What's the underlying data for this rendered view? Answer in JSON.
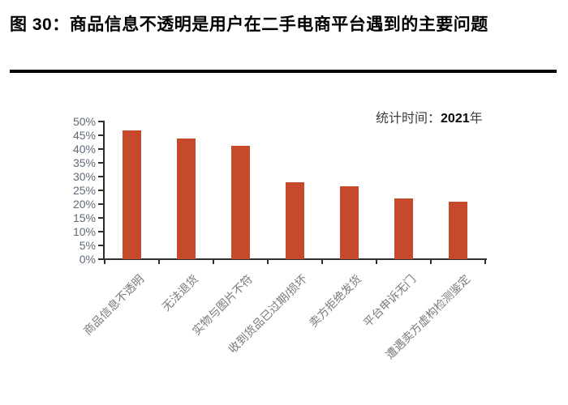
{
  "page": {
    "title": "图 30：商品信息不透明是用户在二手电商平台遇到的主要问题",
    "stat_time": {
      "label": "统计时间：",
      "year": "2021",
      "year_suffix": "年"
    }
  },
  "colors": {
    "bar": "#C5492A",
    "axis": "#2f2f2f",
    "y_tick_label": "#5f6b7a",
    "category_label": "#7a7a7a",
    "title": "#000000"
  },
  "chart_data": {
    "type": "bar",
    "title": "商品信息不透明是用户在二手电商平台遇到的主要问题",
    "annotation": "统计时间：2021年",
    "categories": [
      "商品信息不透明",
      "无法退货",
      "实物与图片不符",
      "收到货品已过期/损坏",
      "卖方拒绝发货",
      "平台申诉无门",
      "遭遇卖方虚构检测鉴定"
    ],
    "values": [
      46.7,
      43.7,
      41.2,
      28.0,
      26.6,
      22.1,
      21.0
    ],
    "unit": "%",
    "xlabel": "",
    "ylabel": "",
    "ylim": [
      0,
      50
    ],
    "y_tick_step": 5,
    "y_tick_labels": [
      "0%",
      "5%",
      "10%",
      "15%",
      "20%",
      "25%",
      "30%",
      "35%",
      "40%",
      "45%",
      "50%"
    ],
    "grid": false,
    "legend_position": "none"
  }
}
